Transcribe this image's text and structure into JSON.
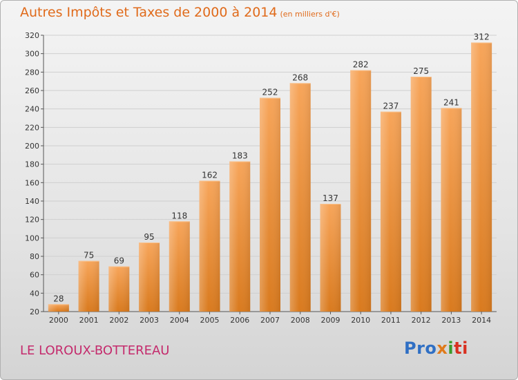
{
  "header": {
    "title": "Autres Impôts et Taxes de 2000 à 2014",
    "subtitle": "(en milliers d'€)"
  },
  "footer": {
    "town": "LE LOROUX-BOTTEREAU",
    "logo": "Proxiti"
  },
  "colors": {
    "bar_top": "#f7a55a",
    "bar_bottom": "#d97a1e",
    "title": "#e06a1a",
    "town": "#c42a6c",
    "grid": "#cfcfcf"
  },
  "chart_data": {
    "type": "bar",
    "title": "Autres Impôts et Taxes de 2000 à 2014",
    "subtitle": "(en milliers d'€)",
    "categories": [
      "2000",
      "2001",
      "2002",
      "2003",
      "2004",
      "2005",
      "2006",
      "2007",
      "2008",
      "2009",
      "2010",
      "2011",
      "2012",
      "2013",
      "2014"
    ],
    "values": [
      28,
      75,
      69,
      95,
      118,
      162,
      183,
      252,
      268,
      137,
      282,
      237,
      275,
      241,
      312
    ],
    "ylim": [
      20,
      320
    ],
    "yticks": [
      20,
      40,
      60,
      80,
      100,
      120,
      140,
      160,
      180,
      200,
      220,
      240,
      260,
      280,
      300,
      320
    ],
    "grid": true,
    "data_labels": true
  }
}
